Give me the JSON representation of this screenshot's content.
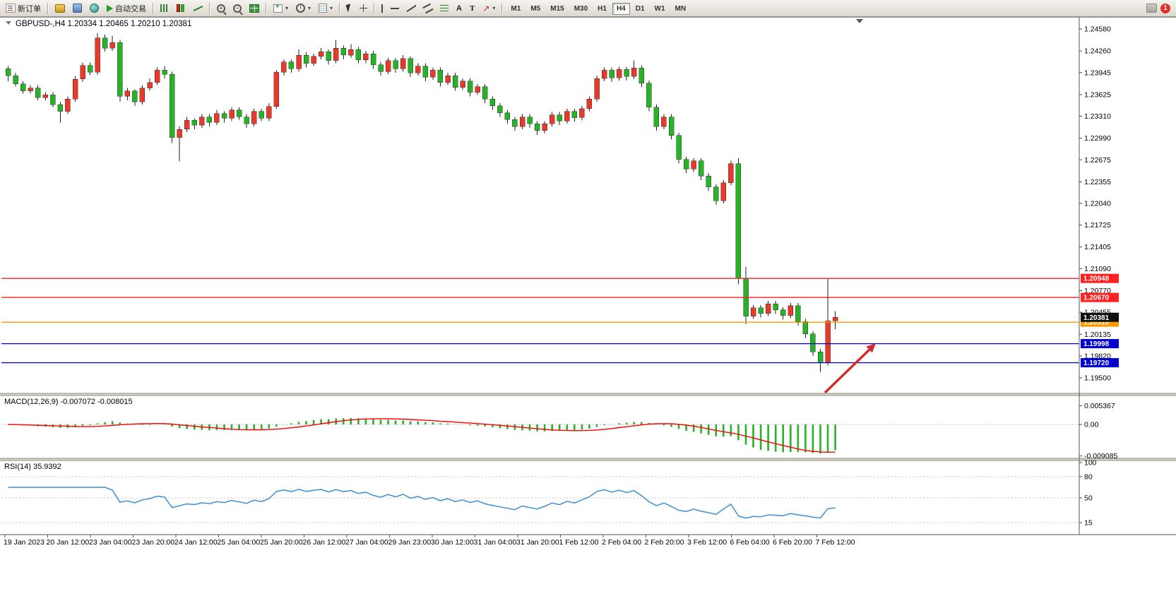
{
  "toolbar": {
    "new_order_label": "新订单",
    "auto_trading_label": "自动交易",
    "timeframes": [
      "M1",
      "M5",
      "M15",
      "M30",
      "H1",
      "H4",
      "D1",
      "W1",
      "MN"
    ],
    "active_timeframe": "H4",
    "notification_count": "1",
    "glyphs": {
      "dropdown": "▾",
      "text_tool": "A",
      "label_tool": "T",
      "arrow_tool": "↗"
    }
  },
  "chart_data": {
    "type": "candlestick",
    "title": "GBPUSD-,H4  1.20334 1.20465 1.20210 1.20381",
    "symbol": "GBPUSD-",
    "period": "H4",
    "ohlc_current": {
      "open": "1.20334",
      "high": "1.20465",
      "low": "1.20210",
      "close": "1.20381"
    },
    "colors": {
      "bull": "#e8392b",
      "bear": "#27b227",
      "wick": "#222222",
      "macd_hist": "#27b227",
      "macd_signal": "#ff0000",
      "rsi_line": "#3d8fd1",
      "current_badge": "#111111",
      "arrow": "#d42a2a"
    },
    "price_axis_ticks": [
      "1.24580",
      "1.24260",
      "1.23945",
      "1.23625",
      "1.23310",
      "1.22990",
      "1.22675",
      "1.22355",
      "1.22040",
      "1.21725",
      "1.21405",
      "1.21090",
      "1.20770",
      "1.20455",
      "1.20135",
      "1.19820",
      "1.19500"
    ],
    "time_axis_ticks": [
      "19 Jan 2023",
      "20 Jan 12:00",
      "23 Jan 04:00",
      "23 Jan 20:00",
      "24 Jan 12:00",
      "25 Jan 04:00",
      "25 Jan 20:00",
      "26 Jan 12:00",
      "27 Jan 04:00",
      "29 Jan 23:00",
      "30 Jan 12:00",
      "31 Jan 04:00",
      "31 Jan 20:00",
      "1 Feb 12:00",
      "2 Feb 04:00",
      "2 Feb 20:00",
      "3 Feb 12:00",
      "6 Feb 04:00",
      "6 Feb 20:00",
      "7 Feb 12:00"
    ],
    "h_lines": [
      {
        "price": 1.20948,
        "label": "1.20948",
        "color": "#ff2020"
      },
      {
        "price": 1.2067,
        "label": "1.20670",
        "color": "#ff2020"
      },
      {
        "price": 1.2031,
        "label": "1.20310",
        "color": "#ff9900"
      },
      {
        "price": 1.19998,
        "label": "1.19998",
        "color": "#0000d0"
      },
      {
        "price": 1.1972,
        "label": "1.19720",
        "color": "#0000d0"
      }
    ],
    "current_price": 1.20381,
    "current_price_label": "1.20381",
    "pip_base": 1.0,
    "pip_divisor": 10000,
    "candles_ohlc_pips": [
      [
        2400,
        2404,
        2382,
        2390
      ],
      [
        2390,
        2394,
        2374,
        2378
      ],
      [
        2378,
        2382,
        2364,
        2368
      ],
      [
        2368,
        2376,
        2364,
        2372
      ],
      [
        2372,
        2376,
        2354,
        2358
      ],
      [
        2358,
        2366,
        2354,
        2362
      ],
      [
        2362,
        2366,
        2344,
        2348
      ],
      [
        2348,
        2352,
        2322,
        2338
      ],
      [
        2338,
        2360,
        2334,
        2356
      ],
      [
        2356,
        2389,
        2352,
        2385
      ],
      [
        2385,
        2409,
        2381,
        2405
      ],
      [
        2405,
        2409,
        2391,
        2395
      ],
      [
        2395,
        2452,
        2391,
        2445
      ],
      [
        2445,
        2450,
        2425,
        2430
      ],
      [
        2430,
        2448,
        2426,
        2438
      ],
      [
        2438,
        2442,
        2352,
        2360
      ],
      [
        2360,
        2372,
        2354,
        2368
      ],
      [
        2368,
        2370,
        2346,
        2352
      ],
      [
        2352,
        2376,
        2348,
        2372
      ],
      [
        2372,
        2386,
        2368,
        2380
      ],
      [
        2380,
        2402,
        2376,
        2398
      ],
      [
        2398,
        2404,
        2386,
        2392
      ],
      [
        2392,
        2396,
        2292,
        2300
      ],
      [
        2300,
        2316,
        2265,
        2312
      ],
      [
        2312,
        2330,
        2308,
        2325
      ],
      [
        2325,
        2328,
        2312,
        2318
      ],
      [
        2318,
        2334,
        2314,
        2330
      ],
      [
        2330,
        2334,
        2316,
        2322
      ],
      [
        2322,
        2340,
        2318,
        2335
      ],
      [
        2335,
        2338,
        2322,
        2328
      ],
      [
        2328,
        2344,
        2324,
        2340
      ],
      [
        2340,
        2344,
        2326,
        2330
      ],
      [
        2330,
        2334,
        2314,
        2320
      ],
      [
        2320,
        2342,
        2316,
        2338
      ],
      [
        2338,
        2342,
        2324,
        2328
      ],
      [
        2328,
        2350,
        2324,
        2345
      ],
      [
        2345,
        2398,
        2342,
        2395
      ],
      [
        2395,
        2414,
        2390,
        2410
      ],
      [
        2410,
        2414,
        2394,
        2400
      ],
      [
        2400,
        2428,
        2396,
        2420
      ],
      [
        2420,
        2424,
        2402,
        2408
      ],
      [
        2408,
        2422,
        2404,
        2418
      ],
      [
        2418,
        2430,
        2414,
        2425
      ],
      [
        2425,
        2428,
        2406,
        2412
      ],
      [
        2412,
        2442,
        2408,
        2430
      ],
      [
        2430,
        2434,
        2414,
        2420
      ],
      [
        2420,
        2436,
        2416,
        2428
      ],
      [
        2428,
        2432,
        2408,
        2413
      ],
      [
        2413,
        2426,
        2408,
        2422
      ],
      [
        2422,
        2426,
        2400,
        2406
      ],
      [
        2406,
        2410,
        2390,
        2396
      ],
      [
        2396,
        2416,
        2392,
        2412
      ],
      [
        2412,
        2416,
        2394,
        2400
      ],
      [
        2400,
        2420,
        2396,
        2415
      ],
      [
        2415,
        2418,
        2388,
        2394
      ],
      [
        2394,
        2408,
        2390,
        2404
      ],
      [
        2404,
        2408,
        2382,
        2388
      ],
      [
        2388,
        2402,
        2384,
        2398
      ],
      [
        2398,
        2402,
        2374,
        2380
      ],
      [
        2380,
        2394,
        2376,
        2390
      ],
      [
        2390,
        2394,
        2368,
        2373
      ],
      [
        2373,
        2386,
        2369,
        2382
      ],
      [
        2382,
        2386,
        2360,
        2366
      ],
      [
        2366,
        2378,
        2362,
        2374
      ],
      [
        2374,
        2378,
        2350,
        2356
      ],
      [
        2356,
        2360,
        2340,
        2346
      ],
      [
        2346,
        2350,
        2330,
        2336
      ],
      [
        2336,
        2340,
        2320,
        2326
      ],
      [
        2326,
        2330,
        2310,
        2316
      ],
      [
        2316,
        2334,
        2312,
        2330
      ],
      [
        2330,
        2334,
        2314,
        2320
      ],
      [
        2320,
        2324,
        2304,
        2310
      ],
      [
        2310,
        2324,
        2306,
        2320
      ],
      [
        2320,
        2337,
        2316,
        2333
      ],
      [
        2333,
        2337,
        2318,
        2324
      ],
      [
        2324,
        2342,
        2320,
        2338
      ],
      [
        2338,
        2342,
        2323,
        2329
      ],
      [
        2329,
        2346,
        2325,
        2342
      ],
      [
        2342,
        2360,
        2338,
        2356
      ],
      [
        2356,
        2390,
        2352,
        2386
      ],
      [
        2386,
        2402,
        2382,
        2398
      ],
      [
        2398,
        2402,
        2381,
        2387
      ],
      [
        2387,
        2403,
        2383,
        2399
      ],
      [
        2399,
        2403,
        2383,
        2389
      ],
      [
        2389,
        2412,
        2385,
        2401
      ],
      [
        2401,
        2405,
        2373,
        2379
      ],
      [
        2379,
        2383,
        2338,
        2344
      ],
      [
        2344,
        2348,
        2310,
        2316
      ],
      [
        2316,
        2334,
        2312,
        2330
      ],
      [
        2330,
        2334,
        2297,
        2303
      ],
      [
        2303,
        2307,
        2262,
        2268
      ],
      [
        2268,
        2272,
        2248,
        2254
      ],
      [
        2254,
        2270,
        2250,
        2266
      ],
      [
        2266,
        2270,
        2238,
        2244
      ],
      [
        2244,
        2248,
        2222,
        2228
      ],
      [
        2228,
        2232,
        2202,
        2208
      ],
      [
        2208,
        2238,
        2204,
        2234
      ],
      [
        2234,
        2266,
        2230,
        2262
      ],
      [
        2262,
        2270,
        2086,
        2095
      ],
      [
        2095,
        2112,
        2028,
        2040
      ],
      [
        2040,
        2056,
        2036,
        2052
      ],
      [
        2052,
        2056,
        2038,
        2044
      ],
      [
        2044,
        2062,
        2040,
        2058
      ],
      [
        2058,
        2062,
        2043,
        2049
      ],
      [
        2049,
        2053,
        2035,
        2041
      ],
      [
        2041,
        2059,
        2037,
        2055
      ],
      [
        2055,
        2059,
        2026,
        2032
      ],
      [
        2032,
        2036,
        2008,
        2014
      ],
      [
        2014,
        2018,
        1982,
        1988
      ],
      [
        1988,
        1992,
        1958,
        1972
      ],
      [
        1972,
        2095,
        1968,
        2033
      ],
      [
        2033,
        2047,
        2021,
        2038
      ]
    ],
    "macd": {
      "label": "MACD(12,26,9) -0.007072 -0.008015",
      "fast": 12,
      "slow": 26,
      "signal": 9,
      "axis_ticks": [
        "0.005367",
        "0.00",
        "-0.009085"
      ],
      "axis_values": [
        0.005367,
        0,
        -0.009085
      ]
    },
    "rsi": {
      "label": "RSI(14) 35.9392",
      "period": 14,
      "axis_ticks": [
        "100",
        "80",
        "50",
        "15"
      ],
      "axis_values": [
        100,
        80,
        50,
        15
      ],
      "levels": [
        80,
        50,
        15
      ]
    }
  }
}
